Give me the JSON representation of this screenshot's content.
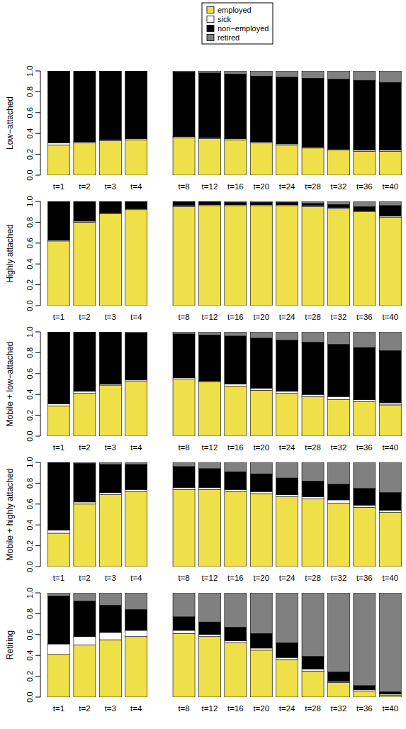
{
  "chart_data": [
    {
      "type": "bar",
      "stacked": true,
      "legend": "top",
      "y_label": "Low−attached",
      "categories": [
        "t=1",
        "t=2",
        "t=3",
        "t=4",
        "t=8",
        "t=12",
        "t=16",
        "t=20",
        "t=24",
        "t=28",
        "t=32",
        "t=36",
        "t=40"
      ],
      "ylim": [
        0,
        1
      ],
      "yticks": [
        {
          "value": 0,
          "label": "0.0"
        },
        {
          "value": 0.2,
          "label": "0.2"
        },
        {
          "value": 0.4,
          "label": "0.4"
        },
        {
          "value": 0.6,
          "label": "0.6"
        },
        {
          "value": 0.8,
          "label": "0.8"
        },
        {
          "value": 1,
          "label": "1.0"
        }
      ],
      "series": [
        {
          "name": "employed",
          "color": "#efe049",
          "values": [
            0.29,
            0.31,
            0.33,
            0.34,
            0.36,
            0.35,
            0.34,
            0.31,
            0.29,
            0.26,
            0.24,
            0.23,
            0.23
          ]
        },
        {
          "name": "sick",
          "color": "#ffffff",
          "values": [
            0.02,
            0.01,
            0.01,
            0.01,
            0.01,
            0.01,
            0.01,
            0.01,
            0.01,
            0.01,
            0.01,
            0.01,
            0.01
          ]
        },
        {
          "name": "non−employed",
          "color": "#000000",
          "values": [
            0.69,
            0.68,
            0.66,
            0.65,
            0.62,
            0.62,
            0.62,
            0.63,
            0.64,
            0.66,
            0.67,
            0.67,
            0.65
          ]
        },
        {
          "name": "retired",
          "color": "#808080",
          "values": [
            0,
            0,
            0,
            0,
            0.01,
            0.02,
            0.03,
            0.05,
            0.06,
            0.07,
            0.08,
            0.09,
            0.11
          ]
        }
      ]
    },
    {
      "type": "bar",
      "stacked": true,
      "y_label": "Highly attached",
      "categories": [
        "t=1",
        "t=2",
        "t=3",
        "t=4",
        "t=8",
        "t=12",
        "t=16",
        "t=20",
        "t=24",
        "t=28",
        "t=32",
        "t=36",
        "t=40"
      ],
      "ylim": [
        0,
        1
      ],
      "yticks": [
        {
          "value": 0,
          "label": "0.0"
        },
        {
          "value": 0.2,
          "label": "0.2"
        },
        {
          "value": 0.4,
          "label": "0.4"
        },
        {
          "value": 0.6,
          "label": "0.6"
        },
        {
          "value": 0.8,
          "label": "0.8"
        },
        {
          "value": 1,
          "label": "1.0"
        }
      ],
      "series": [
        {
          "name": "employed",
          "color": "#efe049",
          "values": [
            0.62,
            0.8,
            0.88,
            0.92,
            0.95,
            0.96,
            0.96,
            0.96,
            0.96,
            0.95,
            0.93,
            0.9,
            0.85
          ]
        },
        {
          "name": "sick",
          "color": "#ffffff",
          "values": [
            0.01,
            0.01,
            0.01,
            0.01,
            0.01,
            0.01,
            0.01,
            0.01,
            0.01,
            0.01,
            0.01,
            0.01,
            0.01
          ]
        },
        {
          "name": "non−employed",
          "color": "#000000",
          "values": [
            0.37,
            0.19,
            0.11,
            0.07,
            0.04,
            0.03,
            0.02,
            0.02,
            0.02,
            0.02,
            0.03,
            0.04,
            0.1
          ]
        },
        {
          "name": "retired",
          "color": "#808080",
          "values": [
            0,
            0,
            0,
            0,
            0,
            0,
            0.01,
            0.01,
            0.01,
            0.02,
            0.03,
            0.05,
            0.04
          ]
        }
      ]
    },
    {
      "type": "bar",
      "stacked": true,
      "y_label": "Mobile + low−attached",
      "categories": [
        "t=1",
        "t=2",
        "t=3",
        "t=4",
        "t=8",
        "t=12",
        "t=16",
        "t=20",
        "t=24",
        "t=28",
        "t=32",
        "t=36",
        "t=40"
      ],
      "ylim": [
        0,
        1
      ],
      "yticks": [
        {
          "value": 0,
          "label": "0.0"
        },
        {
          "value": 0.2,
          "label": "0.2"
        },
        {
          "value": 0.4,
          "label": "0.4"
        },
        {
          "value": 0.6,
          "label": "0.6"
        },
        {
          "value": 0.8,
          "label": "0.8"
        },
        {
          "value": 1,
          "label": "1.0"
        }
      ],
      "series": [
        {
          "name": "employed",
          "color": "#efe049",
          "values": [
            0.29,
            0.41,
            0.49,
            0.53,
            0.55,
            0.52,
            0.48,
            0.44,
            0.41,
            0.38,
            0.35,
            0.33,
            0.3
          ]
        },
        {
          "name": "sick",
          "color": "#ffffff",
          "values": [
            0.02,
            0.02,
            0.01,
            0.01,
            0.01,
            0.01,
            0.02,
            0.02,
            0.02,
            0.02,
            0.03,
            0.02,
            0.02
          ]
        },
        {
          "name": "non−employed",
          "color": "#000000",
          "values": [
            0.69,
            0.57,
            0.5,
            0.45,
            0.42,
            0.44,
            0.46,
            0.48,
            0.49,
            0.5,
            0.5,
            0.5,
            0.5
          ]
        },
        {
          "name": "retired",
          "color": "#808080",
          "values": [
            0,
            0,
            0,
            0.01,
            0.02,
            0.03,
            0.04,
            0.06,
            0.08,
            0.1,
            0.12,
            0.15,
            0.18
          ]
        }
      ]
    },
    {
      "type": "bar",
      "stacked": true,
      "y_label": "Mobile + highly attached",
      "categories": [
        "t=1",
        "t=2",
        "t=3",
        "t=4",
        "t=8",
        "t=12",
        "t=16",
        "t=20",
        "t=24",
        "t=28",
        "t=32",
        "t=36",
        "t=40"
      ],
      "ylim": [
        0,
        1
      ],
      "yticks": [
        {
          "value": 0,
          "label": "0.0"
        },
        {
          "value": 0.2,
          "label": "0.2"
        },
        {
          "value": 0.4,
          "label": "0.4"
        },
        {
          "value": 0.6,
          "label": "0.6"
        },
        {
          "value": 0.8,
          "label": "0.8"
        },
        {
          "value": 1,
          "label": "1.0"
        }
      ],
      "series": [
        {
          "name": "employed",
          "color": "#efe049",
          "values": [
            0.32,
            0.6,
            0.69,
            0.72,
            0.74,
            0.74,
            0.72,
            0.7,
            0.67,
            0.65,
            0.61,
            0.57,
            0.52
          ]
        },
        {
          "name": "sick",
          "color": "#ffffff",
          "values": [
            0.03,
            0.02,
            0.02,
            0.02,
            0.02,
            0.02,
            0.02,
            0.02,
            0.02,
            0.02,
            0.03,
            0.02,
            0.02
          ]
        },
        {
          "name": "non−employed",
          "color": "#000000",
          "values": [
            0.65,
            0.37,
            0.27,
            0.24,
            0.2,
            0.18,
            0.17,
            0.17,
            0.16,
            0.15,
            0.15,
            0.16,
            0.17
          ]
        },
        {
          "name": "retired",
          "color": "#808080",
          "values": [
            0,
            0.01,
            0.02,
            0.02,
            0.04,
            0.06,
            0.09,
            0.11,
            0.15,
            0.18,
            0.21,
            0.25,
            0.29
          ]
        }
      ]
    },
    {
      "type": "bar",
      "stacked": true,
      "y_label": "Retiring",
      "categories": [
        "t=1",
        "t=2",
        "t=3",
        "t=4",
        "t=8",
        "t=12",
        "t=16",
        "t=20",
        "t=24",
        "t=28",
        "t=32",
        "t=36",
        "t=40"
      ],
      "ylim": [
        0,
        1
      ],
      "yticks": [
        {
          "value": 0,
          "label": "0.0"
        },
        {
          "value": 0.2,
          "label": "0.2"
        },
        {
          "value": 0.4,
          "label": "0.4"
        },
        {
          "value": 0.6,
          "label": "0.6"
        },
        {
          "value": 0.8,
          "label": "0.8"
        },
        {
          "value": 1,
          "label": "1.0"
        }
      ],
      "series": [
        {
          "name": "employed",
          "color": "#efe049",
          "values": [
            0.41,
            0.5,
            0.55,
            0.58,
            0.61,
            0.58,
            0.52,
            0.45,
            0.36,
            0.25,
            0.14,
            0.06,
            0.02
          ]
        },
        {
          "name": "sick",
          "color": "#ffffff",
          "values": [
            0.1,
            0.08,
            0.07,
            0.06,
            0.03,
            0.02,
            0.02,
            0.02,
            0.02,
            0.02,
            0.01,
            0.01,
            0.01
          ]
        },
        {
          "name": "non−employed",
          "color": "#000000",
          "values": [
            0.46,
            0.34,
            0.26,
            0.2,
            0.13,
            0.12,
            0.13,
            0.14,
            0.14,
            0.12,
            0.09,
            0.04,
            0.02
          ]
        },
        {
          "name": "retired",
          "color": "#808080",
          "values": [
            0.03,
            0.08,
            0.12,
            0.16,
            0.23,
            0.28,
            0.33,
            0.39,
            0.48,
            0.61,
            0.76,
            0.89,
            0.95
          ]
        }
      ]
    }
  ]
}
